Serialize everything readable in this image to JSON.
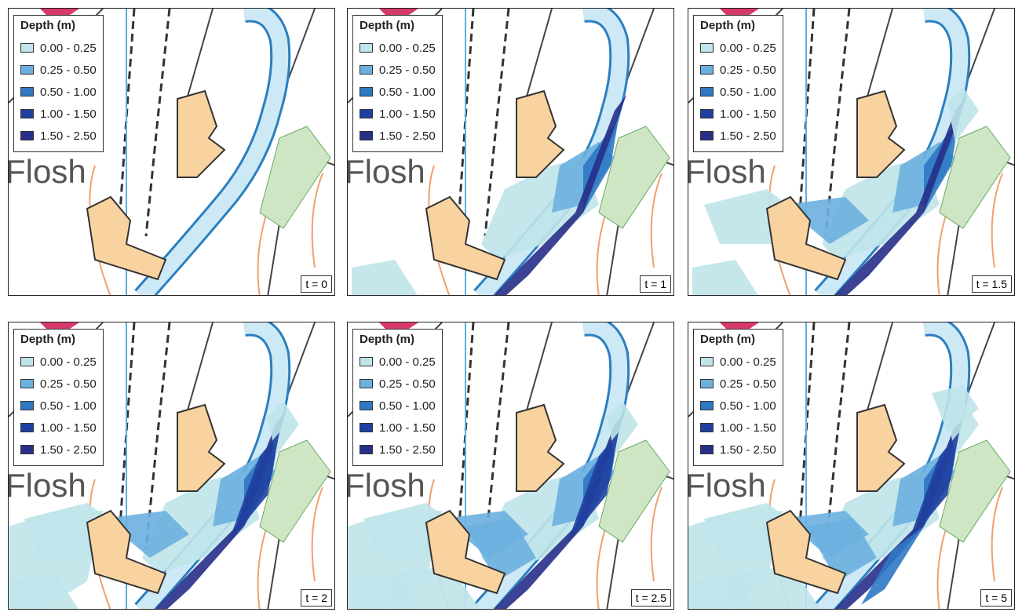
{
  "legend": {
    "title": "Depth (m)",
    "items": [
      {
        "label": "0.00 - 0.25",
        "color": "#bfe4ea"
      },
      {
        "label": "0.25 - 0.50",
        "color": "#6cb0e0"
      },
      {
        "label": "0.50 - 1.00",
        "color": "#2f78c4"
      },
      {
        "label": "1.00 - 1.50",
        "color": "#1f40a0"
      },
      {
        "label": "1.50 - 2.50",
        "color": "#272f88"
      }
    ]
  },
  "panels": [
    {
      "time": "t = 0",
      "place": "Flosh"
    },
    {
      "time": "t = 1",
      "place": "Flosh"
    },
    {
      "time": "t = 1.5",
      "place": "Flosh"
    },
    {
      "time": "t = 2",
      "place": "Flosh"
    },
    {
      "time": "t = 2.5",
      "place": "Flosh"
    },
    {
      "time": "t = 5",
      "place": "Flosh"
    }
  ]
}
